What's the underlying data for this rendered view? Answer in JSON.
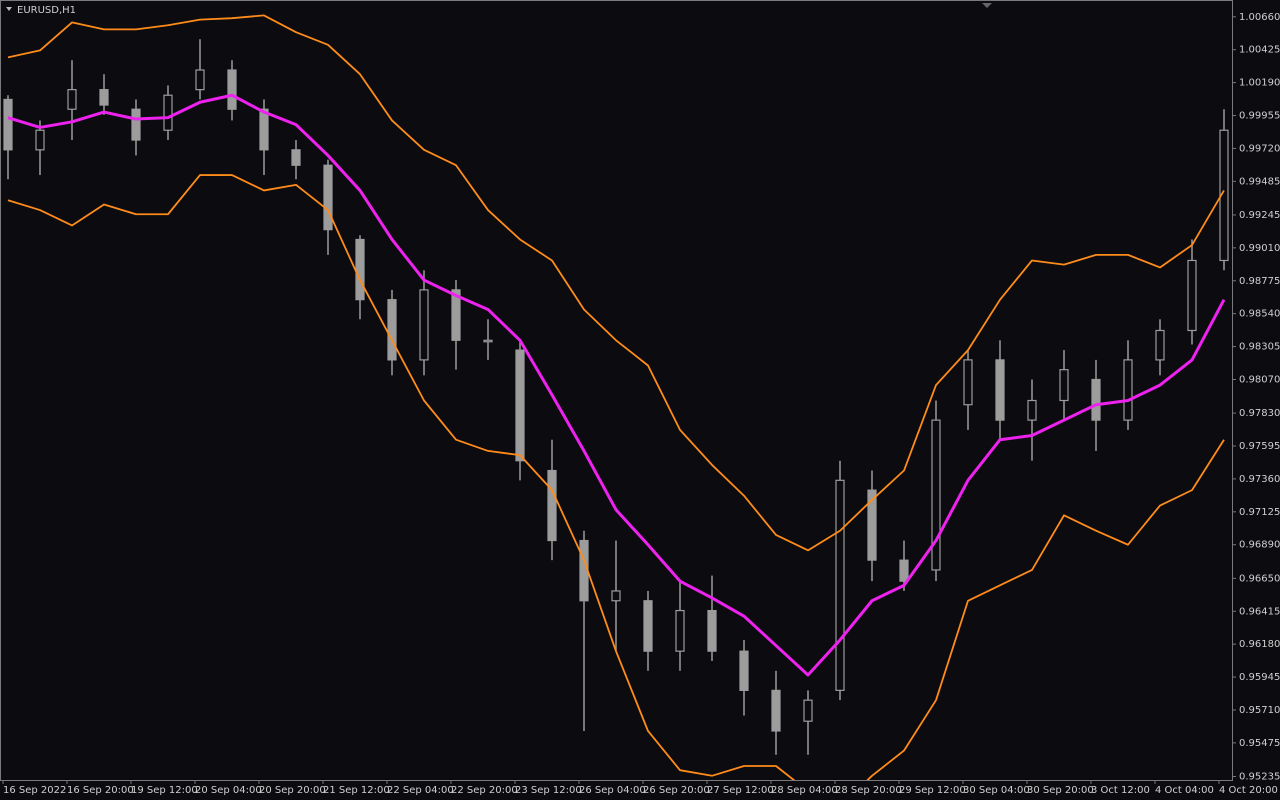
{
  "chart_data": {
    "type": "candlestick",
    "title": "EURUSD,H1",
    "categories": [
      "16 Sep 2022",
      null,
      "16 Sep 20:00",
      null,
      "19 Sep 12:00",
      null,
      "20 Sep 04:00",
      null,
      "20 Sep 20:00",
      null,
      "21 Sep 12:00",
      null,
      "22 Sep 04:00",
      null,
      "22 Sep 20:00",
      null,
      "23 Sep 12:00",
      null,
      "26 Sep 04:00",
      null,
      "26 Sep 20:00",
      null,
      "27 Sep 12:00",
      null,
      "28 Sep 04:00",
      null,
      "28 Sep 20:00",
      null,
      "29 Sep 12:00",
      null,
      "30 Sep 04:00",
      null,
      "30 Sep 20:00",
      null,
      "3 Oct 12:00",
      null,
      "4 Oct 04:00",
      null,
      "4 Oct 20:00"
    ],
    "open": [
      1.0007,
      0.9971,
      1.0,
      1.0014,
      1.0,
      0.9985,
      1.0014,
      1.0028,
      1.0,
      0.9971,
      0.996,
      0.9907,
      0.9864,
      0.9821,
      0.9871,
      0.9835,
      0.9828,
      0.9742,
      0.9692,
      0.9649,
      0.9649,
      0.9613,
      0.9642,
      0.9613,
      0.9585,
      0.9563,
      0.9585,
      0.9728,
      0.9678,
      0.9671,
      0.9789,
      0.9821,
      0.9778,
      0.9792,
      0.9807,
      0.9778,
      0.9821,
      0.9842,
      0.9892
    ],
    "high": [
      1.001,
      0.9992,
      1.0035,
      1.0025,
      1.0007,
      1.0017,
      1.005,
      1.0035,
      1.0007,
      0.9978,
      0.9964,
      0.991,
      0.9871,
      0.9885,
      0.9878,
      0.985,
      0.9835,
      0.9764,
      0.9699,
      0.9692,
      0.9656,
      0.9663,
      0.9667,
      0.9621,
      0.9599,
      0.9585,
      0.9749,
      0.9742,
      0.9692,
      0.9792,
      0.9828,
      0.9835,
      0.9807,
      0.9828,
      0.9821,
      0.9835,
      0.985,
      0.9907,
      1.0
    ],
    "low": [
      0.995,
      0.9953,
      0.9978,
      0.9996,
      0.9967,
      0.9978,
      1.0007,
      0.9992,
      0.9953,
      0.995,
      0.9896,
      0.985,
      0.981,
      0.981,
      0.9814,
      0.9821,
      0.9735,
      0.9678,
      0.9556,
      0.9613,
      0.9599,
      0.9599,
      0.9606,
      0.9567,
      0.9539,
      0.9539,
      0.9578,
      0.9663,
      0.9656,
      0.9663,
      0.9771,
      0.9764,
      0.9749,
      0.9778,
      0.9756,
      0.9771,
      0.981,
      0.9832,
      0.9885
    ],
    "close": [
      0.9971,
      0.9985,
      1.0014,
      1.0003,
      0.9978,
      1.001,
      1.0028,
      1.0,
      0.9971,
      0.996,
      0.9914,
      0.9864,
      0.9821,
      0.9871,
      0.9835,
      0.9835,
      0.9749,
      0.9692,
      0.9649,
      0.9656,
      0.9613,
      0.9642,
      0.9613,
      0.9585,
      0.9556,
      0.9578,
      0.9735,
      0.9678,
      0.9663,
      0.9778,
      0.9821,
      0.9778,
      0.9792,
      0.9814,
      0.9778,
      0.9821,
      0.9842,
      0.9892,
      0.9985
    ],
    "candle_color": "#9c9c9c",
    "series": [
      {
        "color": "#ff8c1a",
        "values": [
          1.0037,
          1.0042,
          1.0062,
          1.0057,
          1.0057,
          1.006,
          1.0064,
          1.0065,
          1.0067,
          1.0055,
          1.0046,
          1.0025,
          0.9992,
          0.9971,
          0.996,
          0.9928,
          0.9907,
          0.9892,
          0.9857,
          0.9835,
          0.9817,
          0.9771,
          0.9746,
          0.9724,
          0.9696,
          0.9685,
          0.9699,
          0.9721,
          0.9742,
          0.9803,
          0.9828,
          0.9864,
          0.9892,
          0.9889,
          0.9896,
          0.9896,
          0.9887,
          0.9903,
          0.9942
        ]
      },
      {
        "color": "#ee22ee",
        "values": [
          0.9994,
          0.9987,
          0.9991,
          0.9998,
          0.9993,
          0.9994,
          1.0005,
          1.001,
          0.9998,
          0.9989,
          0.9967,
          0.9942,
          0.9907,
          0.9878,
          0.9867,
          0.9857,
          0.9835,
          0.9796,
          0.9756,
          0.9714,
          0.9689,
          0.9663,
          0.9651,
          0.9638,
          0.9617,
          0.9596,
          0.9621,
          0.9649,
          0.966,
          0.9692,
          0.9735,
          0.9764,
          0.9767,
          0.9778,
          0.9789,
          0.9792,
          0.9803,
          0.9821,
          0.9864
        ]
      },
      {
        "color": "#ff8c1a",
        "values": [
          0.9935,
          0.9928,
          0.9917,
          0.9932,
          0.9925,
          0.9925,
          0.9953,
          0.9953,
          0.9942,
          0.9946,
          0.9928,
          0.9878,
          0.9835,
          0.9792,
          0.9764,
          0.9756,
          0.9753,
          0.9728,
          0.9678,
          0.9613,
          0.9556,
          0.9528,
          0.9524,
          0.9531,
          0.9531,
          0.9513,
          0.9502,
          0.9524,
          0.9542,
          0.9578,
          0.9649,
          0.966,
          0.9671,
          0.971,
          0.9699,
          0.9689,
          0.9717,
          0.9728,
          0.9764
        ]
      }
    ],
    "ylim": [
      0.9521,
      1.0078
    ],
    "yticks": [
      {
        "value": 1.0066,
        "label": "1.00660"
      },
      1.00425,
      {
        "value": 1.0019,
        "label": "1.00190"
      },
      0.99955,
      {
        "value": 0.9972,
        "label": "0.99720"
      },
      0.99485,
      0.99245,
      {
        "value": 0.9901,
        "label": "0.99010"
      },
      0.98775,
      {
        "value": 0.9854,
        "label": "0.98540"
      },
      0.98305,
      {
        "value": 0.9807,
        "label": "0.98070"
      },
      {
        "value": 0.9783,
        "label": "0.97830"
      },
      0.97595,
      {
        "value": 0.9736,
        "label": "0.97360"
      },
      0.97125,
      {
        "value": 0.9689,
        "label": "0.96890"
      },
      {
        "value": 0.9665,
        "label": "0.96650"
      },
      0.96415,
      {
        "value": 0.9618,
        "label": "0.96180"
      },
      0.95945,
      {
        "value": 0.9571,
        "label": "0.95710"
      },
      0.95475,
      0.95235
    ]
  }
}
